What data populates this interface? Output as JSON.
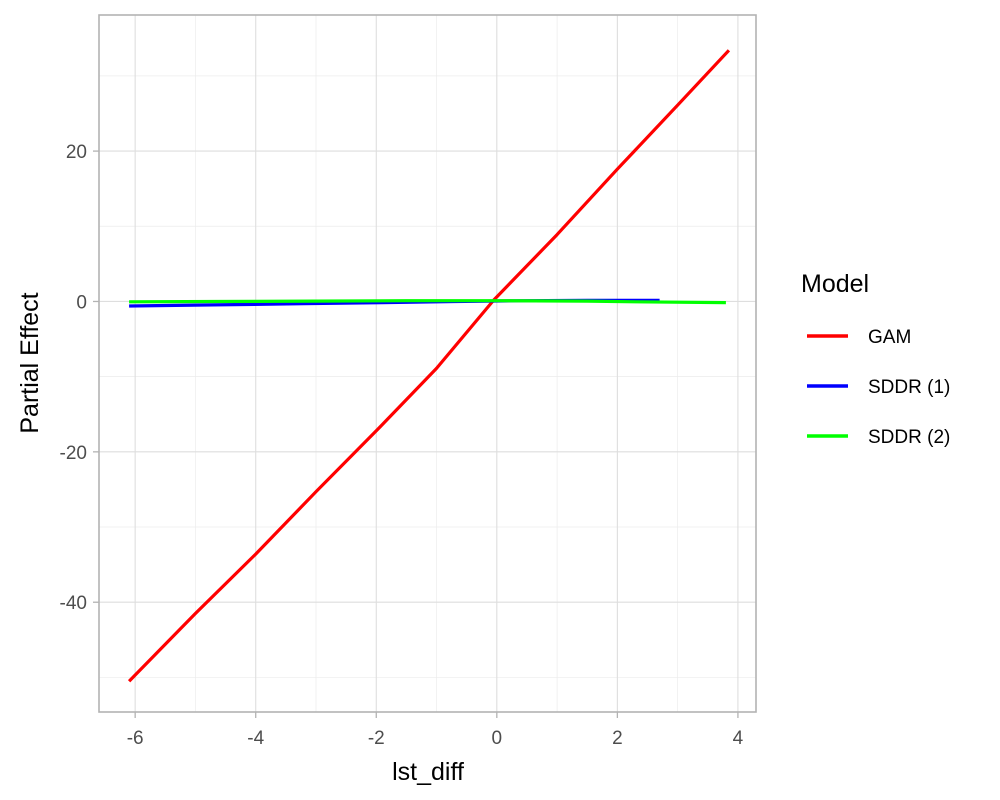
{
  "chart_data": {
    "type": "line",
    "xlabel": "lst_diff",
    "ylabel": "Partial Effect",
    "xlim": [
      -6.6,
      4.3
    ],
    "ylim": [
      -54.6,
      38.1
    ],
    "x_ticks": [
      -6,
      -4,
      -2,
      0,
      2,
      4
    ],
    "x_tick_labels": [
      "-6",
      "-4",
      "-2",
      "0",
      "2",
      "4"
    ],
    "y_ticks": [
      -40,
      -20,
      0,
      20
    ],
    "y_tick_labels": [
      "-40",
      "-20",
      "0",
      "20"
    ],
    "grid": true,
    "legend": {
      "title": "Model",
      "position": "right"
    },
    "series": [
      {
        "name": "GAM",
        "color": "#ff0000",
        "x": [
          -6.1,
          -5.0,
          -4.0,
          -3.0,
          -2.0,
          -1.0,
          -0.05,
          1.0,
          2.0,
          3.0,
          3.85
        ],
        "y": [
          -50.5,
          -41.5,
          -33.6,
          -25.3,
          -17.2,
          -8.9,
          0.2,
          8.9,
          17.6,
          26.1,
          33.4
        ]
      },
      {
        "name": "SDDR (1)",
        "color": "#0000ff",
        "x": [
          -6.1,
          -4.7,
          -3.2,
          -1.9,
          -0.7,
          0.5,
          1.5,
          2.7
        ],
        "y": [
          -0.6,
          -0.45,
          -0.3,
          -0.15,
          0.0,
          0.1,
          0.15,
          0.15
        ]
      },
      {
        "name": "SDDR (2)",
        "color": "#00ff00",
        "x": [
          -6.1,
          -4.7,
          -3.0,
          -1.5,
          0.0,
          1.5,
          2.3,
          3.8
        ],
        "y": [
          -0.05,
          0.0,
          0.05,
          0.1,
          0.1,
          0.05,
          -0.05,
          -0.15
        ]
      }
    ]
  }
}
